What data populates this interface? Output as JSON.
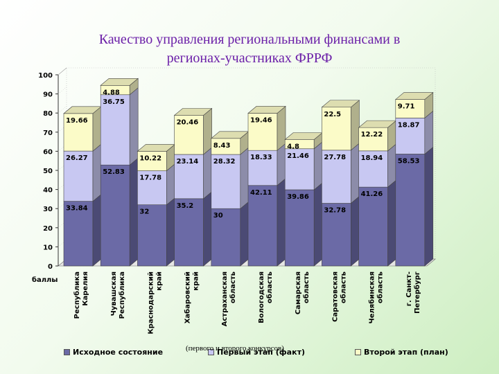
{
  "title_line1": "Качество управления региональными финансами в",
  "title_line2": "регионах-участниках ФРРФ",
  "note": "(первого и второго конкурсов)",
  "chart_data": {
    "type": "bar",
    "stacked": true,
    "ylim": [
      0,
      100
    ],
    "yticks": [
      0,
      10,
      20,
      30,
      40,
      50,
      60,
      70,
      80,
      90,
      100
    ],
    "ylabel": "баллы",
    "categories": [
      [
        "Республика",
        "Карелия"
      ],
      [
        "Чувашская",
        "Республика"
      ],
      [
        "Краснодарский",
        "край"
      ],
      [
        "Хабаровский",
        "край"
      ],
      [
        "Астраханская",
        "область"
      ],
      [
        "Вологодская",
        "область"
      ],
      [
        "Самарская",
        "область"
      ],
      [
        "Саратовская",
        "область"
      ],
      [
        "Челябинская",
        "область"
      ],
      [
        "г. Санкт-",
        "Петербург"
      ]
    ],
    "series": [
      {
        "name": "Исходное состояние",
        "color": "#6b6aa6",
        "values": [
          33.84,
          52.83,
          32,
          35.2,
          30,
          42.11,
          39.86,
          32.78,
          41.26,
          58.53
        ],
        "labels": [
          "33.84",
          "52.83",
          "32",
          "35.2",
          "30",
          "42.11",
          "39.86",
          "32.78",
          "41.26",
          "58.53"
        ]
      },
      {
        "name": "Первый этап (факт)",
        "color": "#c8c8f2",
        "values": [
          26.27,
          36.75,
          17.78,
          23.14,
          28.32,
          18.33,
          21.46,
          27.78,
          18.94,
          18.87
        ],
        "labels": [
          "26.27",
          "36.75",
          "17.78",
          "23.14",
          "28.32",
          "18.33",
          "21.46",
          "27.78",
          "18.94",
          "18.87"
        ]
      },
      {
        "name": "Второй этап (план)",
        "color": "#fbfbc8",
        "values": [
          19.66,
          4.88,
          10.22,
          20.46,
          8.43,
          19.46,
          4.8,
          22.5,
          12.22,
          9.71
        ],
        "labels": [
          "19.66",
          "4.88",
          "10.22",
          "20.46",
          "8.43",
          "19.46",
          "4.8",
          "22.5",
          "12.22",
          "9.71"
        ]
      }
    ]
  }
}
